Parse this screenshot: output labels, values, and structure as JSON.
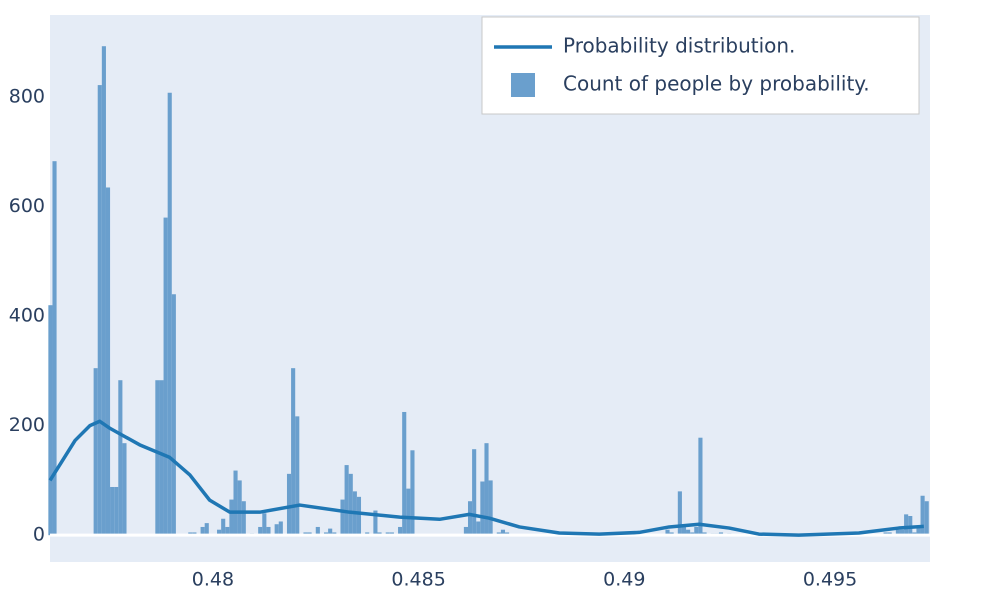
{
  "chart_data": {
    "type": "histogram",
    "series": [
      {
        "name": "Probability distribution.",
        "type": "line",
        "color": "#1f77b4",
        "x": [
          0.47604,
          0.47665,
          0.47701,
          0.47725,
          0.4775,
          0.47822,
          0.47895,
          0.47944,
          0.47992,
          0.48041,
          0.48114,
          0.48211,
          0.48332,
          0.48454,
          0.48551,
          0.48623,
          0.48672,
          0.48745,
          0.48842,
          0.48939,
          0.49036,
          0.49109,
          0.49182,
          0.49255,
          0.49327,
          0.49424,
          0.4957,
          0.49667,
          0.49728
        ],
        "values": [
          100,
          173,
          200,
          208,
          195,
          165,
          142,
          110,
          64,
          42,
          42,
          55,
          42,
          33,
          29,
          38,
          31,
          15,
          4,
          2,
          5,
          15,
          20,
          13,
          2,
          0,
          4,
          13,
          16
        ]
      },
      {
        "name": "Count of people by probability.",
        "type": "histogram",
        "color": "#6a9fcd",
        "bins": [
          0.476,
          0.4761,
          0.4762,
          0.4763,
          0.4764,
          0.4765,
          0.4766,
          0.4767,
          0.4768,
          0.4769,
          0.477,
          0.4771,
          0.4772,
          0.4773,
          0.4774,
          0.4775,
          0.4776,
          0.4777,
          0.4778,
          0.4779,
          0.478,
          0.4781,
          0.4782,
          0.4783,
          0.4784,
          0.4785,
          0.4786,
          0.4787,
          0.4788,
          0.4789,
          0.479,
          0.4791,
          0.4792,
          0.4793,
          0.4794,
          0.4795,
          0.4796,
          0.4797,
          0.4798,
          0.4799,
          0.48,
          0.4801,
          0.4802,
          0.4803,
          0.4804,
          0.4805,
          0.4806,
          0.4807,
          0.4808,
          0.4809,
          0.481,
          0.4811,
          0.4812,
          0.4813,
          0.4814,
          0.4815,
          0.4816,
          0.4817,
          0.4818,
          0.4819,
          0.482,
          0.4821,
          0.4822,
          0.4823,
          0.4824,
          0.4825,
          0.4826,
          0.4827,
          0.4828,
          0.4829,
          0.483,
          0.4831,
          0.4832,
          0.4833,
          0.4834,
          0.4835,
          0.4836,
          0.4837,
          0.4838,
          0.4839,
          0.484,
          0.4841,
          0.4842,
          0.4843,
          0.4844,
          0.4845,
          0.4846,
          0.4847,
          0.4848,
          0.4849,
          0.485,
          0.4851,
          0.4852,
          0.4853,
          0.4854,
          0.4855,
          0.4856,
          0.4857,
          0.4858,
          0.4859,
          0.486,
          0.4861,
          0.4862,
          0.4863,
          0.4864,
          0.4865,
          0.4866,
          0.4867,
          0.4868,
          0.4869,
          0.487,
          0.4871,
          0.4872,
          0.4873,
          0.4874,
          0.4875,
          0.4876,
          0.4877,
          0.4878,
          0.4879,
          0.488,
          0.4881,
          0.4882,
          0.4883,
          0.4884,
          0.4885,
          0.4886,
          0.4887,
          0.4888,
          0.4889,
          0.489,
          0.4891,
          0.4892,
          0.4893,
          0.4894,
          0.4895,
          0.4896,
          0.4897,
          0.4898,
          0.4899,
          0.49,
          0.4901,
          0.4902,
          0.4903,
          0.4904,
          0.4905,
          0.4906,
          0.4907,
          0.4908,
          0.4909,
          0.491,
          0.4911,
          0.4912,
          0.4913,
          0.4914,
          0.4915,
          0.4916,
          0.4917,
          0.4918,
          0.4919,
          0.492,
          0.4921,
          0.4922,
          0.4923,
          0.4924,
          0.4925,
          0.4926,
          0.4927,
          0.4928,
          0.4929,
          0.493,
          0.4931,
          0.4932,
          0.4933,
          0.4934,
          0.4935,
          0.4936,
          0.4937,
          0.4938,
          0.4939,
          0.494,
          0.4941,
          0.4942,
          0.4943,
          0.4944,
          0.4945,
          0.4946,
          0.4947,
          0.4948,
          0.4949,
          0.495,
          0.4951,
          0.4952,
          0.4953,
          0.4954,
          0.4955,
          0.4956,
          0.4957,
          0.4958,
          0.4959,
          0.496,
          0.4961,
          0.4962,
          0.4963,
          0.4964,
          0.4965,
          0.4966,
          0.4967,
          0.4968,
          0.4969,
          0.497,
          0.4971,
          0.4972,
          0.4973,
          0.4974
        ],
        "values": [
          420,
          683,
          0,
          0,
          0,
          0,
          0,
          0,
          0,
          0,
          0,
          305,
          822,
          893,
          635,
          88,
          88,
          283,
          168,
          0,
          0,
          0,
          0,
          0,
          0,
          0,
          283,
          283,
          580,
          808,
          440,
          0,
          0,
          0,
          5,
          5,
          0,
          15,
          22,
          0,
          0,
          10,
          30,
          15,
          65,
          118,
          100,
          62,
          0,
          3,
          0,
          15,
          40,
          15,
          0,
          20,
          25,
          0,
          112,
          305,
          217,
          0,
          5,
          5,
          0,
          15,
          0,
          5,
          12,
          5,
          0,
          65,
          128,
          112,
          80,
          70,
          0,
          5,
          0,
          45,
          5,
          0,
          5,
          5,
          0,
          15,
          225,
          85,
          155,
          0,
          0,
          0,
          0,
          0,
          0,
          0,
          0,
          0,
          0,
          0,
          0,
          15,
          62,
          157,
          25,
          98,
          168,
          100,
          0,
          5,
          10,
          5,
          0,
          0,
          0,
          0,
          0,
          0,
          0,
          0,
          0,
          0,
          0,
          0,
          0,
          0,
          0,
          0,
          0,
          0,
          0,
          0,
          0,
          0,
          0,
          0,
          0,
          0,
          0,
          0,
          0,
          0,
          0,
          0,
          0,
          0,
          0,
          0,
          0,
          0,
          10,
          5,
          0,
          80,
          15,
          10,
          5,
          15,
          178,
          5,
          0,
          3,
          3,
          5,
          0,
          3,
          0,
          0,
          0,
          0,
          0,
          0,
          0,
          0,
          0,
          0,
          0,
          0,
          0,
          0,
          0,
          0,
          0,
          0,
          0,
          0,
          0,
          0,
          0,
          0,
          0,
          0,
          0,
          0,
          0,
          0,
          0,
          0,
          0,
          0,
          0,
          0,
          0,
          5,
          5,
          0,
          10,
          10,
          38,
          35,
          5,
          15,
          72,
          62
        ]
      }
    ],
    "xlim": [
      0.47604,
      0.49743
    ],
    "ylim": [
      -49,
      950
    ],
    "xticks": [
      0.48,
      0.485,
      0.49,
      0.495
    ],
    "yticks": [
      0,
      200,
      400,
      600,
      800
    ],
    "grid": false,
    "zeroline": true,
    "legend": "top-right"
  }
}
